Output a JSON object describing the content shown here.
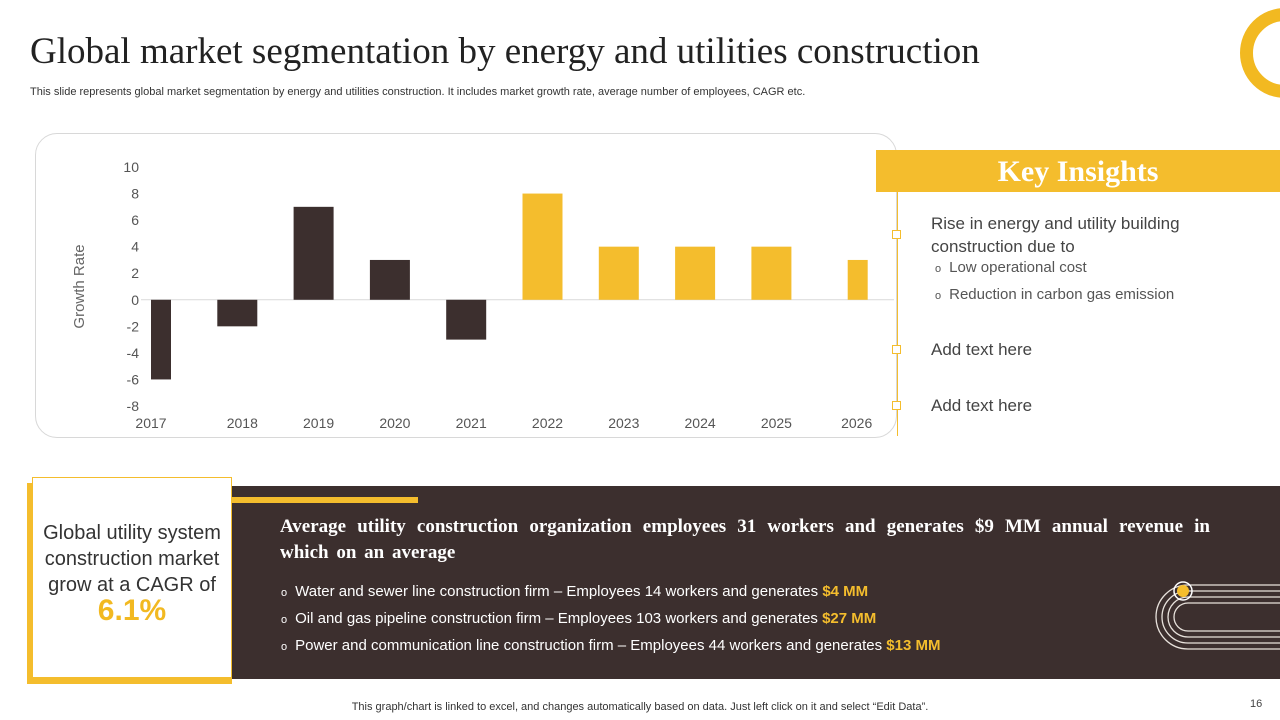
{
  "slide": {
    "title": "Global market segmentation by energy and utilities construction",
    "subtitle": "This slide represents global market segmentation by energy and utilities construction. It includes market growth rate, average number of employees, CAGR etc.",
    "footer_note": "This graph/chart is linked to excel,  and changes automatically based on data. Just left click on it and select “Edit Data”.",
    "page_number": "16"
  },
  "chart_data": {
    "type": "bar",
    "title": "",
    "xlabel": "",
    "ylabel": "Growth Rate",
    "categories": [
      "2017",
      "2018",
      "2019",
      "2020",
      "2021",
      "2022",
      "2023",
      "2024",
      "2025",
      "2026"
    ],
    "values": [
      -6,
      -2,
      7,
      3,
      -3,
      8,
      4,
      4,
      4,
      3
    ],
    "bar_colors": [
      "#3c2f2e",
      "#3c2f2e",
      "#3c2f2e",
      "#3c2f2e",
      "#3c2f2e",
      "#f4bd2d",
      "#f4bd2d",
      "#f4bd2d",
      "#f4bd2d",
      "#f4bd2d"
    ],
    "ylim": [
      -8,
      10
    ],
    "yticks": [
      -8,
      -6,
      -4,
      -2,
      0,
      2,
      4,
      6,
      8,
      10
    ],
    "grid": false,
    "legend": "none"
  },
  "key_insights": {
    "title": "Key Insights",
    "items": [
      {
        "text": "Rise in energy and utility building construction due to",
        "subitems": [
          "Low operational cost",
          "Reduction in carbon gas emission"
        ]
      },
      {
        "text": "Add text here"
      },
      {
        "text": "Add text here"
      }
    ]
  },
  "cagr": {
    "text": "Global utility system construction market grow at a CAGR of",
    "value": "6.1%"
  },
  "summary": {
    "heading": "Average utility construction organization employees 31 workers and generates $9 MM annual revenue in which on an average",
    "bullet_glyph": "o",
    "bullets": [
      {
        "text": "Water and sewer line construction firm – Employees 14 workers and generates",
        "amount": "$4 MM"
      },
      {
        "text": "Oil and gas pipeline construction  firm – Employees 103 workers and generates",
        "amount": "$27 MM"
      },
      {
        "text": "Power and communication line construction  firm – Employees 44 workers and generates",
        "amount": "$13 MM"
      }
    ]
  },
  "colors": {
    "accent": "#f4bd2d",
    "dark": "#3c2f2e"
  }
}
